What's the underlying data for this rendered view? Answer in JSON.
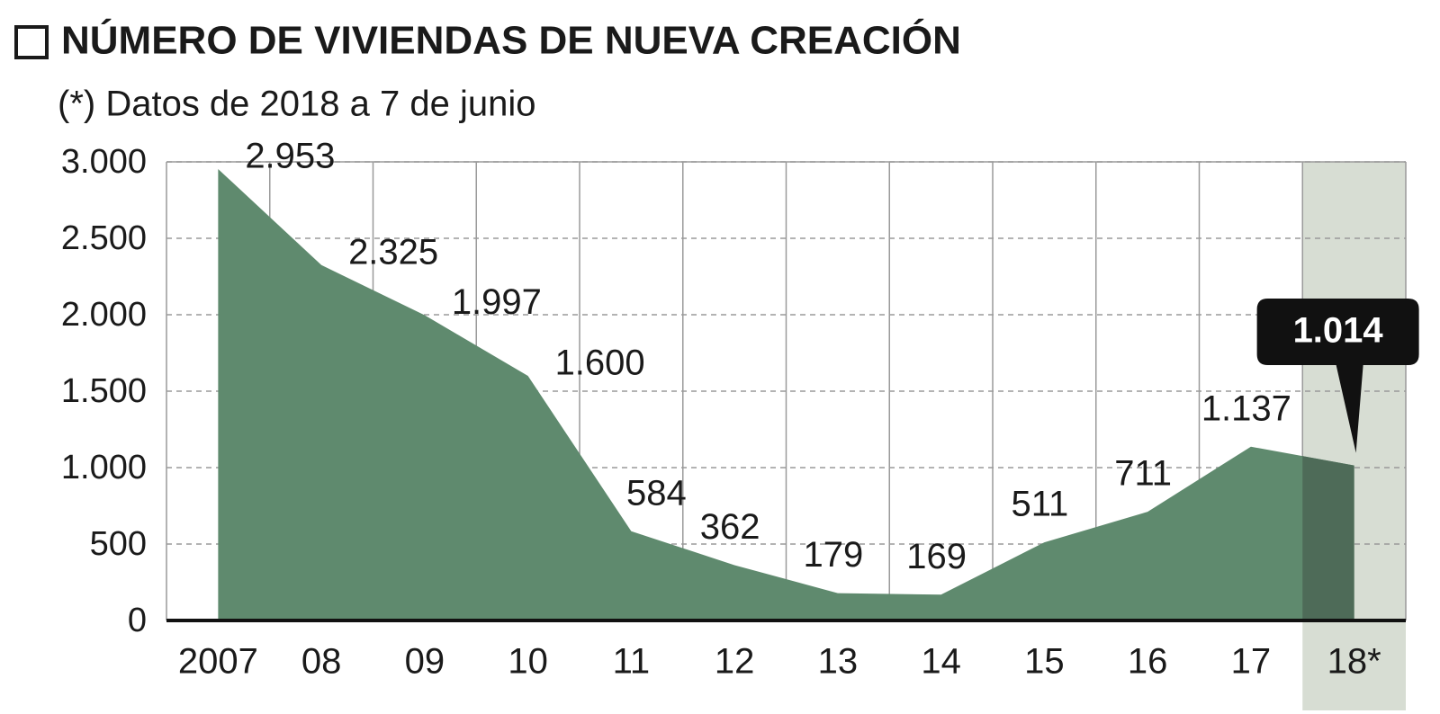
{
  "chart_data": {
    "type": "area",
    "title": "NÚMERO DE VIVIENDAS DE NUEVA CREACIÓN",
    "subtitle": "(*) Datos de 2018 a 7 de junio",
    "categories": [
      "2007",
      "08",
      "09",
      "10",
      "11",
      "12",
      "13",
      "14",
      "15",
      "16",
      "17",
      "18*"
    ],
    "values": [
      2953,
      2325,
      1997,
      1600,
      584,
      362,
      179,
      169,
      511,
      711,
      1137,
      1014
    ],
    "value_labels": [
      "2.953",
      "2.325",
      "1.997",
      "1.600",
      "584",
      "362",
      "179",
      "169",
      "511",
      "711",
      "1.137",
      "1.014"
    ],
    "color": "#5f8a6e",
    "ylim": [
      0,
      3000
    ],
    "yticks": [
      0,
      500,
      {
        "value": 1000,
        "label": "1.000"
      },
      {
        "value": 1500,
        "label": "1.500"
      },
      {
        "value": 2000,
        "label": "2.000"
      },
      {
        "value": 2500,
        "label": "2.500"
      },
      {
        "value": 3000,
        "label": "3.000"
      }
    ],
    "grid": true
  }
}
